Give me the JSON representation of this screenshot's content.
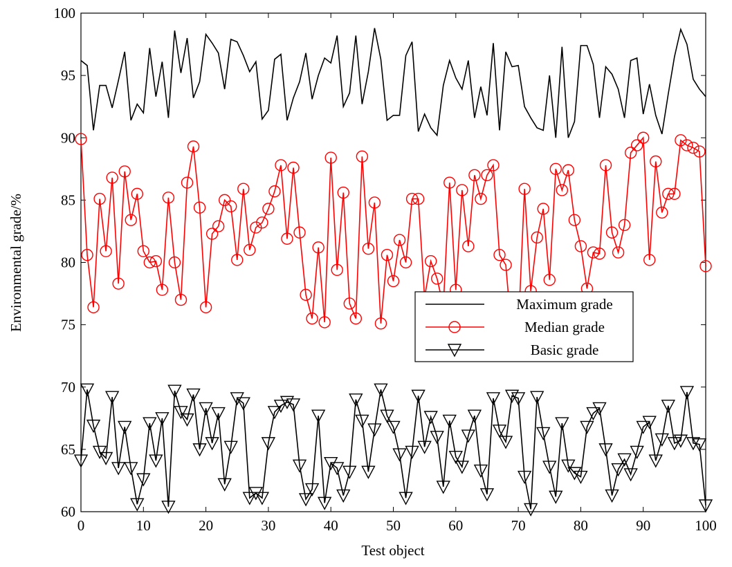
{
  "chart_data": {
    "type": "line",
    "xlabel": "Test object",
    "ylabel": "Environmental grade/%",
    "x": [
      0,
      1,
      2,
      3,
      4,
      5,
      6,
      7,
      8,
      9,
      10,
      11,
      12,
      13,
      14,
      15,
      16,
      17,
      18,
      19,
      20,
      21,
      22,
      23,
      24,
      25,
      26,
      27,
      28,
      29,
      30,
      31,
      32,
      33,
      34,
      35,
      36,
      37,
      38,
      39,
      40,
      41,
      42,
      43,
      44,
      45,
      46,
      47,
      48,
      49,
      50,
      51,
      52,
      53,
      54,
      55,
      56,
      57,
      58,
      59,
      60,
      61,
      62,
      63,
      64,
      65,
      66,
      67,
      68,
      69,
      70,
      71,
      72,
      73,
      74,
      75,
      76,
      77,
      78,
      79,
      80,
      81,
      82,
      83,
      84,
      85,
      86,
      87,
      88,
      89,
      90,
      91,
      92,
      93,
      94,
      95,
      96,
      97,
      98,
      99,
      100
    ],
    "series": [
      {
        "name": "Maximum grade",
        "color": "#000000",
        "marker": "none",
        "values": [
          96.2,
          95.8,
          90.6,
          94.2,
          94.2,
          92.4,
          94.6,
          96.9,
          91.4,
          92.7,
          92.0,
          97.2,
          93.3,
          96.1,
          91.6,
          98.6,
          95.2,
          98.0,
          93.2,
          94.5,
          98.3,
          97.6,
          96.8,
          93.9,
          97.9,
          97.7,
          96.6,
          95.3,
          96.1,
          91.5,
          92.2,
          96.3,
          96.7,
          91.4,
          93.2,
          94.5,
          96.8,
          93.1,
          95.0,
          96.4,
          96.0,
          98.2,
          92.5,
          93.6,
          98.2,
          92.7,
          95.3,
          98.8,
          96.3,
          91.4,
          91.8,
          91.8,
          96.6,
          97.7,
          90.5,
          91.9,
          90.8,
          90.2,
          94.2,
          96.2,
          94.8,
          93.9,
          96.2,
          91.6,
          94.1,
          91.8,
          97.6,
          90.6,
          96.9,
          95.7,
          95.8,
          92.5,
          91.6,
          90.8,
          90.6,
          95.0,
          90.0,
          97.3,
          90.0,
          91.3,
          97.4,
          97.4,
          95.9,
          91.6,
          95.7,
          95.1,
          93.9,
          91.6,
          96.2,
          96.4,
          91.9,
          94.3,
          91.8,
          90.3,
          93.5,
          96.5,
          98.7,
          97.5,
          94.7,
          93.9,
          93.3
        ]
      },
      {
        "name": "Median grade",
        "color": "#ff0000",
        "marker": "circle",
        "values": [
          89.9,
          80.6,
          76.4,
          85.1,
          80.9,
          86.8,
          78.3,
          87.3,
          83.4,
          85.5,
          80.9,
          80.0,
          80.1,
          77.8,
          85.2,
          80.0,
          77.0,
          86.4,
          89.3,
          84.4,
          76.4,
          82.3,
          82.9,
          85.0,
          84.5,
          80.2,
          85.9,
          81.0,
          82.8,
          83.2,
          84.3,
          85.7,
          87.8,
          81.9,
          87.6,
          82.4,
          77.4,
          75.5,
          81.2,
          75.2,
          88.4,
          79.4,
          85.6,
          76.7,
          75.5,
          88.5,
          81.1,
          84.8,
          75.1,
          80.6,
          78.5,
          81.8,
          80.0,
          85.1,
          85.1,
          77.2,
          80.1,
          78.7,
          76.5,
          86.4,
          77.8,
          85.8,
          81.3,
          87.0,
          85.1,
          87.0,
          87.8,
          80.6,
          79.8,
          74.0,
          74.5,
          85.9,
          77.7,
          82.0,
          84.3,
          78.6,
          87.5,
          85.8,
          87.4,
          83.4,
          81.3,
          77.9,
          80.8,
          80.7,
          87.8,
          82.4,
          80.8,
          83.0,
          88.8,
          89.4,
          90.0,
          80.2,
          88.1,
          84.0,
          85.5,
          85.5,
          89.8,
          89.4,
          89.2,
          88.9,
          79.7
        ]
      },
      {
        "name": "Basic grade",
        "color": "#000000",
        "marker": "triangle-down",
        "values": [
          64.1,
          69.8,
          66.9,
          64.8,
          64.3,
          69.2,
          63.5,
          66.8,
          63.5,
          60.6,
          62.6,
          67.1,
          64.1,
          67.5,
          60.4,
          69.7,
          68.0,
          67.4,
          69.4,
          65.0,
          68.3,
          65.5,
          67.9,
          62.2,
          65.2,
          69.1,
          68.7,
          61.1,
          61.5,
          61.1,
          65.5,
          68.0,
          68.5,
          68.8,
          68.6,
          63.7,
          61.0,
          61.8,
          67.7,
          60.7,
          63.9,
          63.5,
          61.3,
          63.2,
          69.0,
          67.3,
          63.2,
          66.6,
          69.8,
          67.7,
          66.8,
          64.6,
          61.1,
          64.8,
          69.3,
          65.2,
          67.6,
          66.0,
          62.0,
          67.3,
          64.4,
          63.6,
          66.1,
          67.7,
          63.3,
          61.4,
          69.1,
          66.5,
          65.6,
          69.3,
          69.1,
          62.8,
          60.2,
          69.2,
          66.3,
          63.6,
          61.2,
          67.1,
          63.7,
          63.1,
          62.8,
          66.8,
          67.9,
          68.3,
          65.0,
          61.3,
          63.4,
          64.2,
          63.0,
          64.8,
          66.8,
          67.2,
          64.1,
          65.8,
          68.5,
          65.5,
          65.7,
          69.6,
          65.5,
          65.4,
          60.5
        ]
      }
    ],
    "xlim": [
      0,
      100
    ],
    "xticks": [
      0,
      10,
      20,
      30,
      40,
      50,
      60,
      70,
      80,
      90,
      100
    ],
    "ylim": [
      60,
      100
    ],
    "yticks": [
      60,
      65,
      70,
      75,
      80,
      85,
      90,
      95,
      100
    ],
    "grid": false,
    "legend": "center right"
  }
}
